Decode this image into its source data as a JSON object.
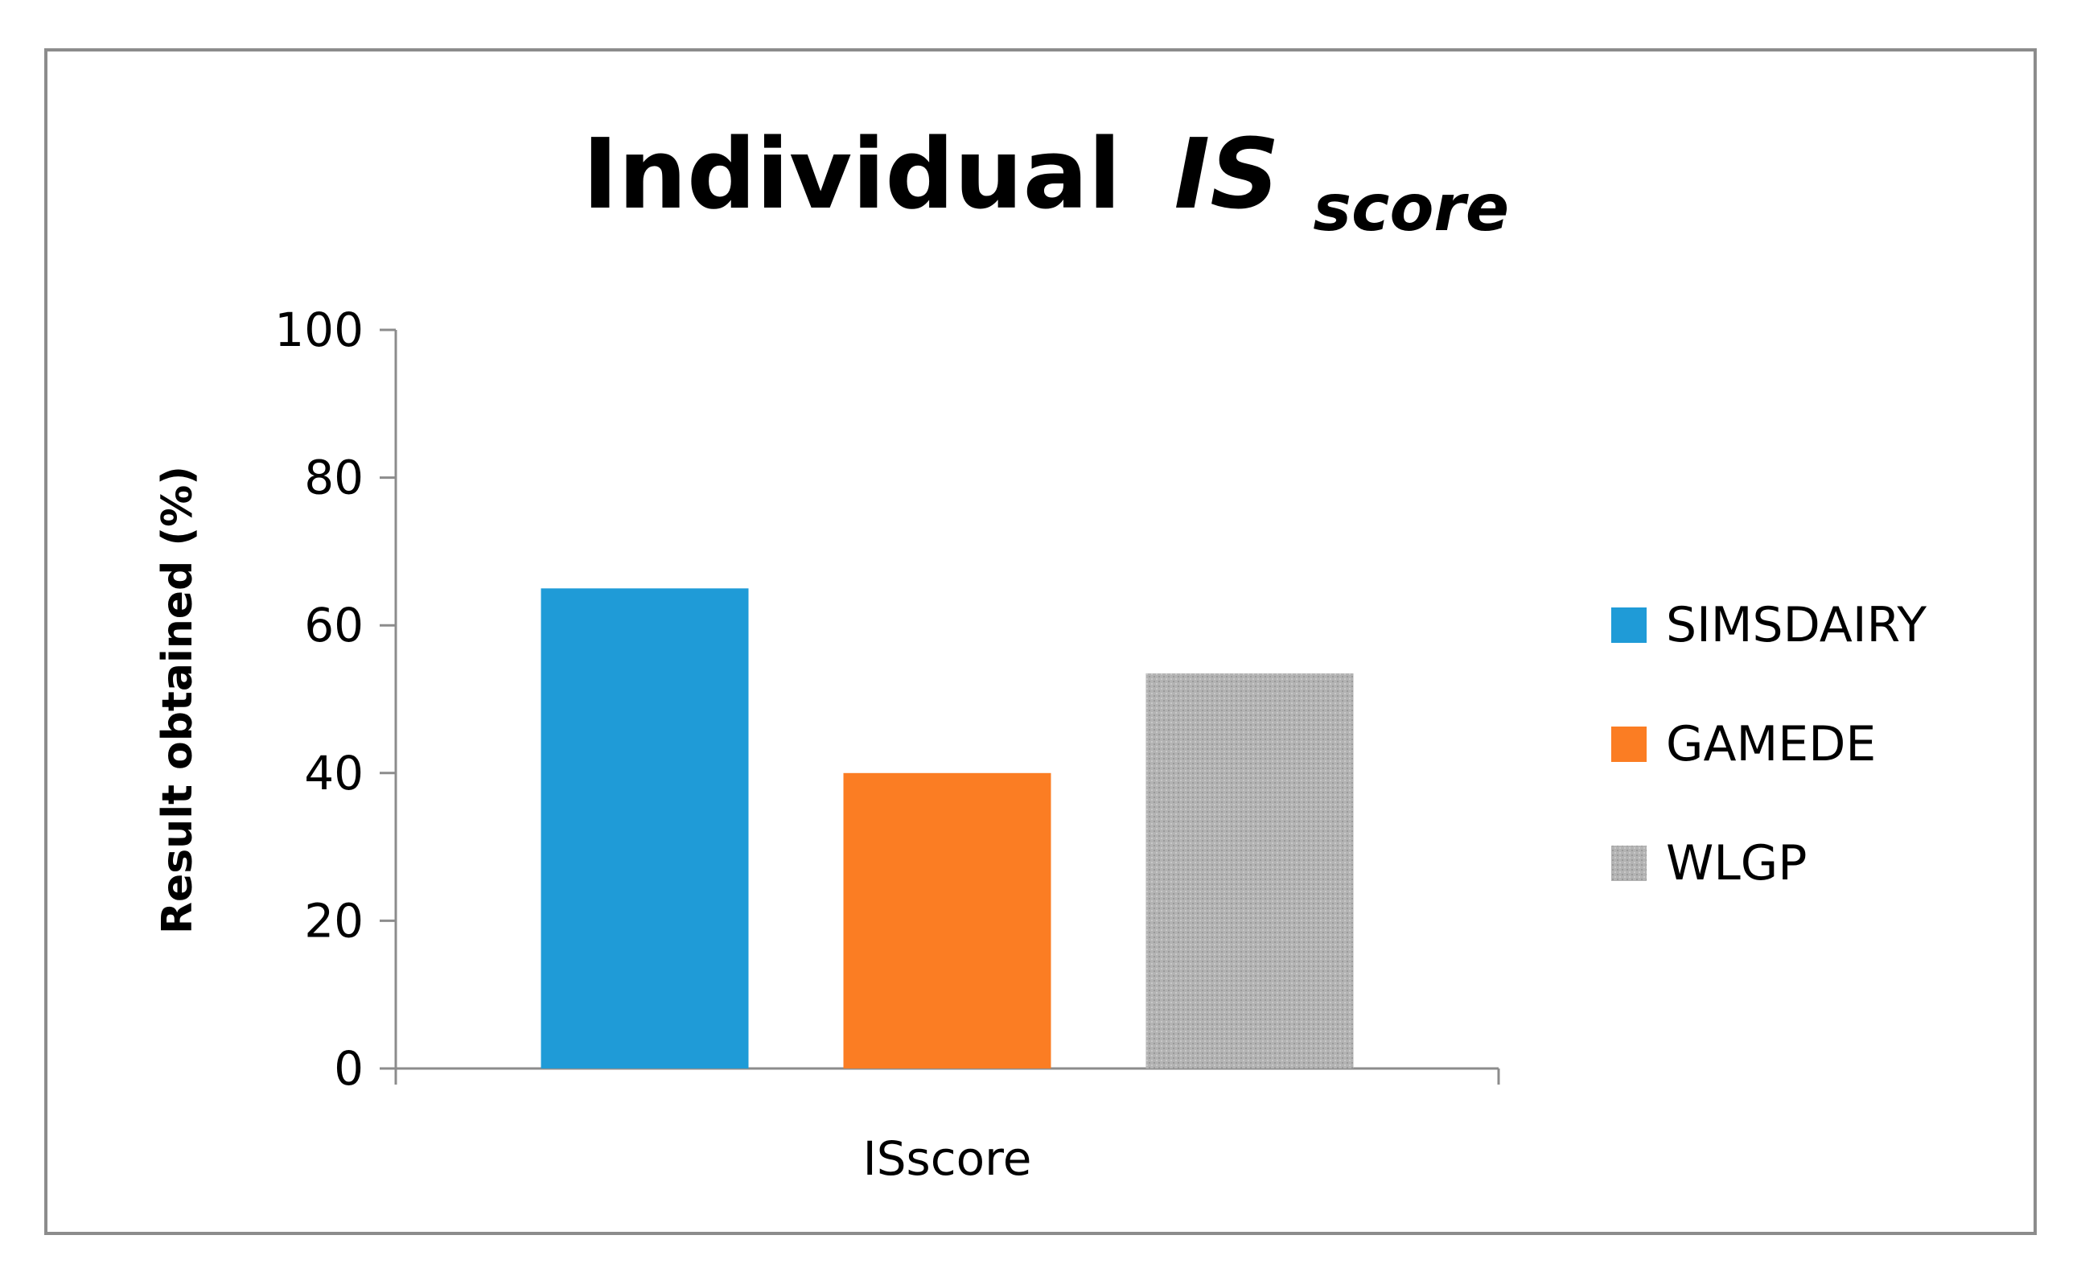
{
  "chart_data": {
    "type": "bar",
    "title": "Individual",
    "title_italic": "IS",
    "title_subscript": "score",
    "ylabel": "Result obtained (%)",
    "xlabel": "",
    "categories": [
      "ISscore"
    ],
    "ylim": [
      0,
      100
    ],
    "yticks": [
      "0",
      "20",
      "40",
      "60",
      "80",
      "100"
    ],
    "grid": false,
    "legend_position": "right",
    "series": [
      {
        "name": "SIMSDAIRY",
        "values": [
          65
        ],
        "color": "#1f9bd7"
      },
      {
        "name": "GAMEDE",
        "values": [
          40
        ],
        "color": "#fb7d23"
      },
      {
        "name": "WLGP",
        "values": [
          53.5
        ],
        "color": "#b3b3b3"
      }
    ]
  }
}
